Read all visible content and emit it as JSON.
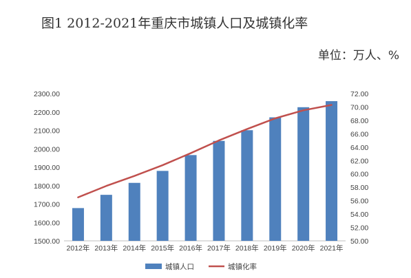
{
  "title": "图1 2012-2021年重庆市城镇人口及城镇化率",
  "unit_label": "单位：万人、%",
  "colors": {
    "bar": "#4F81BD",
    "line": "#C0504D",
    "axis": "#BFBFBF",
    "text": "#404040"
  },
  "chart_data": {
    "type": "bar",
    "title": "图1 2012-2021年重庆市城镇人口及城镇化率",
    "categories": [
      "2012年",
      "2013年",
      "2014年",
      "2015年",
      "2016年",
      "2017年",
      "2018年",
      "2019年",
      "2020年",
      "2021年"
    ],
    "series": [
      {
        "name": "城镇人口",
        "type": "bar",
        "axis": "left",
        "values": [
          1678,
          1750,
          1815,
          1880,
          1966,
          2043,
          2101,
          2171,
          2226,
          2259
        ]
      },
      {
        "name": "城镇化率",
        "type": "line",
        "axis": "right",
        "values": [
          56.5,
          58.2,
          59.7,
          61.3,
          63.1,
          65.0,
          66.7,
          68.3,
          69.5,
          70.3
        ]
      }
    ],
    "y_left": {
      "ylim": [
        1500,
        2300
      ],
      "ticks": [
        "1500.00",
        "1600.00",
        "1700.00",
        "1800.00",
        "1900.00",
        "2000.00",
        "2100.00",
        "2200.00",
        "2300.00"
      ]
    },
    "y_right": {
      "ylim": [
        50,
        72
      ],
      "ticks": [
        "50.00",
        "52.00",
        "54.00",
        "56.00",
        "58.00",
        "60.00",
        "62.00",
        "64.00",
        "66.00",
        "68.00",
        "70.00",
        "72.00"
      ]
    },
    "grid": false,
    "legend_position": "bottom"
  }
}
